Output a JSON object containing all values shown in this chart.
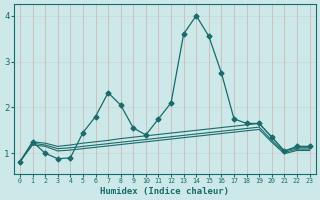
{
  "xlabel": "Humidex (Indice chaleur)",
  "bg_color": "#cce8e8",
  "grid_color": "#aaaacc",
  "line_color": "#1a6b6b",
  "xlim": [
    -0.5,
    23.5
  ],
  "ylim": [
    0.55,
    4.25
  ],
  "yticks": [
    1,
    2,
    3,
    4
  ],
  "xticks": [
    0,
    1,
    2,
    3,
    4,
    5,
    6,
    7,
    8,
    9,
    10,
    11,
    12,
    13,
    14,
    15,
    16,
    17,
    18,
    19,
    20,
    21,
    22,
    23
  ],
  "series": [
    {
      "x": [
        0,
        1,
        2,
        3,
        4,
        5,
        6,
        7,
        8,
        9,
        10,
        11,
        12,
        13,
        14,
        15,
        16,
        17,
        18,
        19,
        20,
        21,
        22,
        23
      ],
      "y": [
        0.8,
        1.25,
        1.0,
        0.88,
        0.9,
        1.45,
        1.8,
        2.32,
        2.05,
        1.55,
        1.4,
        1.75,
        2.1,
        3.6,
        4.0,
        3.55,
        2.75,
        1.75,
        1.65,
        1.65,
        1.35,
        1.05,
        1.15,
        1.15
      ],
      "marker": "D",
      "markersize": 2.5
    },
    {
      "x": [
        0,
        1,
        2,
        3,
        4,
        5,
        6,
        7,
        8,
        9,
        10,
        11,
        12,
        13,
        14,
        15,
        16,
        17,
        18,
        19,
        20,
        21,
        22,
        23
      ],
      "y": [
        0.82,
        1.25,
        1.22,
        1.15,
        1.18,
        1.22,
        1.25,
        1.28,
        1.32,
        1.35,
        1.38,
        1.41,
        1.44,
        1.47,
        1.5,
        1.53,
        1.56,
        1.59,
        1.62,
        1.65,
        1.35,
        1.05,
        1.12,
        1.12
      ],
      "marker": null
    },
    {
      "x": [
        0,
        1,
        2,
        3,
        4,
        5,
        6,
        7,
        8,
        9,
        10,
        11,
        12,
        13,
        14,
        15,
        16,
        17,
        18,
        19,
        20,
        21,
        22,
        23
      ],
      "y": [
        0.82,
        1.22,
        1.18,
        1.1,
        1.12,
        1.15,
        1.18,
        1.21,
        1.24,
        1.27,
        1.3,
        1.33,
        1.36,
        1.39,
        1.42,
        1.45,
        1.48,
        1.51,
        1.54,
        1.57,
        1.28,
        1.02,
        1.09,
        1.09
      ],
      "marker": null
    },
    {
      "x": [
        0,
        1,
        2,
        3,
        4,
        5,
        6,
        7,
        8,
        9,
        10,
        11,
        12,
        13,
        14,
        15,
        16,
        17,
        18,
        19,
        20,
        21,
        22,
        23
      ],
      "y": [
        0.82,
        1.18,
        1.15,
        1.05,
        1.07,
        1.1,
        1.13,
        1.16,
        1.19,
        1.22,
        1.25,
        1.28,
        1.31,
        1.34,
        1.37,
        1.4,
        1.43,
        1.46,
        1.49,
        1.52,
        1.24,
        0.99,
        1.06,
        1.06
      ],
      "marker": null
    }
  ]
}
